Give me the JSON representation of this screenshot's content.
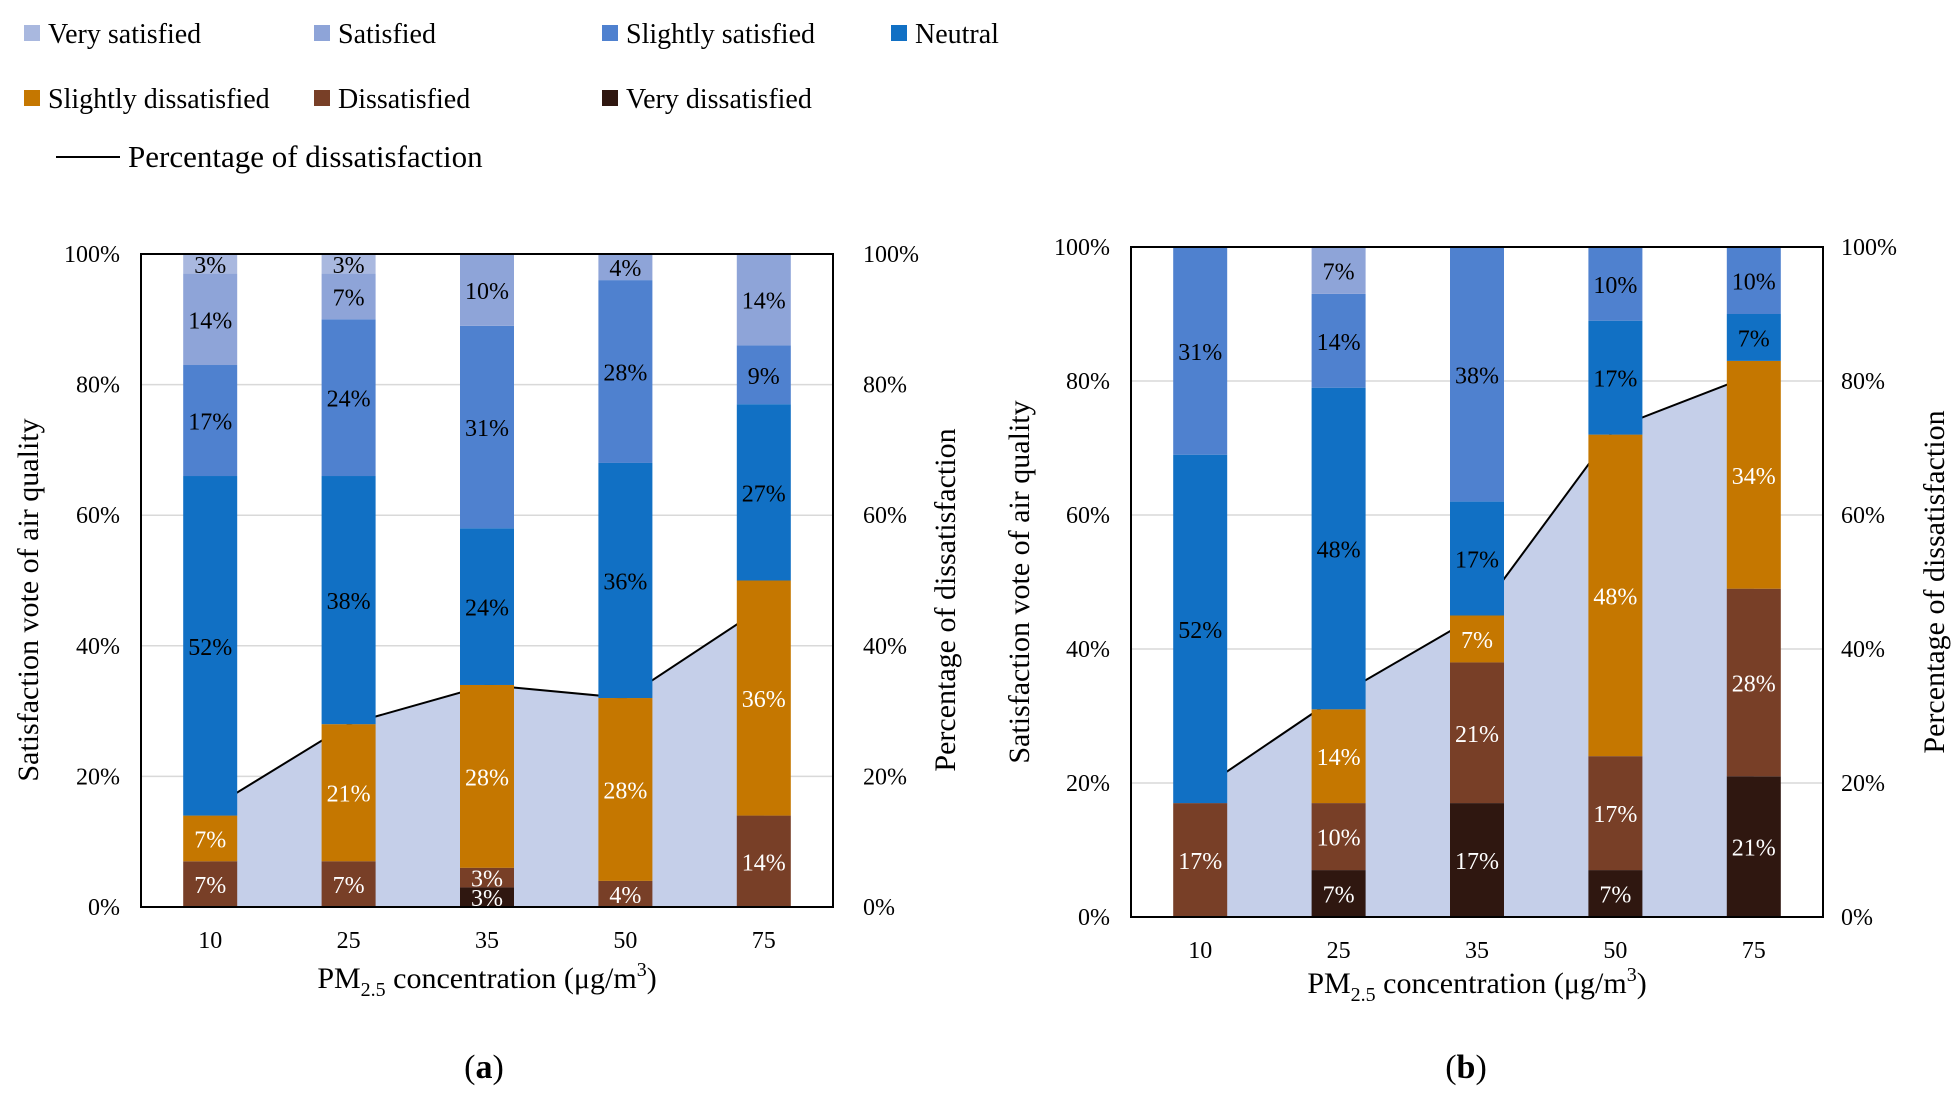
{
  "legend": {
    "categories": [
      {
        "key": "very_satisfied",
        "label": "Very satisfied",
        "color": "#A9B8DF"
      },
      {
        "key": "satisfied",
        "label": "Satisfied",
        "color": "#8EA4D8"
      },
      {
        "key": "slightly_satisfied",
        "label": "Slightly satisfied",
        "color": "#4F81CF"
      },
      {
        "key": "neutral",
        "label": "Neutral",
        "color": "#1170C4"
      },
      {
        "key": "slightly_dissatisfied",
        "label": "Slightly dissatisfied",
        "color": "#C57700"
      },
      {
        "key": "dissatisfied",
        "label": "Dissatisfied",
        "color": "#783F27"
      },
      {
        "key": "very_dissatisfied",
        "label": "Very dissatisfied",
        "color": "#2F1710"
      }
    ],
    "line_label": "Percentage of dissatisfaction",
    "line_color": "#000000",
    "area_color": "#C5CFE9"
  },
  "chart_data": [
    {
      "id": "a",
      "type": "bar",
      "stacked": true,
      "caption": "a",
      "categories": [
        "10",
        "25",
        "35",
        "50",
        "75"
      ],
      "xlabel_main": "PM",
      "xlabel_sub": "2.5",
      "xlabel_rest": " concentration  (μg/m",
      "xlabel_sup": "3",
      "xlabel_end": ")",
      "ylabel_left": "Satisfaction  vote of air quality",
      "ylabel_right": "Percentage  of dissatisfaction",
      "ylim": [
        0,
        100
      ],
      "yticks": [
        "0%",
        "20%",
        "40%",
        "60%",
        "80%",
        "100%"
      ],
      "grid": true,
      "series": [
        {
          "key": "very_dissatisfied",
          "values": [
            0,
            0,
            3,
            0,
            0
          ],
          "labels": [
            "",
            "",
            "3%",
            "",
            ""
          ]
        },
        {
          "key": "dissatisfied",
          "values": [
            7,
            7,
            3,
            4,
            14
          ],
          "labels": [
            "7%",
            "7%",
            "3%",
            "4%",
            "14%"
          ]
        },
        {
          "key": "slightly_dissatisfied",
          "values": [
            7,
            21,
            28,
            28,
            36
          ],
          "labels": [
            "7%",
            "21%",
            "28%",
            "28%",
            "36%"
          ]
        },
        {
          "key": "neutral",
          "values": [
            52,
            38,
            24,
            36,
            27
          ],
          "labels": [
            "52%",
            "38%",
            "24%",
            "36%",
            "27%"
          ]
        },
        {
          "key": "slightly_satisfied",
          "values": [
            17,
            24,
            31,
            28,
            9
          ],
          "labels": [
            "17%",
            "24%",
            "31%",
            "28%",
            "9%"
          ]
        },
        {
          "key": "satisfied",
          "values": [
            14,
            7,
            10,
            4,
            14
          ],
          "labels": [
            "14%",
            "7%",
            "10%",
            "4%",
            "14%"
          ]
        },
        {
          "key": "very_satisfied",
          "values": [
            3,
            3,
            0,
            0,
            0
          ],
          "labels": [
            "3%",
            "3%",
            "",
            "",
            ""
          ]
        }
      ],
      "dissatisfaction": [
        15,
        28,
        34,
        32,
        46
      ]
    },
    {
      "id": "b",
      "type": "bar",
      "stacked": true,
      "caption": "b",
      "categories": [
        "10",
        "25",
        "35",
        "50",
        "75"
      ],
      "xlabel_main": "PM",
      "xlabel_sub": "2.5",
      "xlabel_rest": " concentration  (μg/m",
      "xlabel_sup": "3",
      "xlabel_end": ")",
      "ylabel_left": "Satisfaction  vote of air quality",
      "ylabel_right": "Percentage  of dissatisfaction",
      "ylim": [
        0,
        100
      ],
      "yticks": [
        "0%",
        "20%",
        "40%",
        "60%",
        "80%",
        "100%"
      ],
      "grid": true,
      "series": [
        {
          "key": "very_dissatisfied",
          "values": [
            0,
            7,
            17,
            7,
            21
          ],
          "labels": [
            "",
            "7%",
            "17%",
            "7%",
            "21%"
          ]
        },
        {
          "key": "dissatisfied",
          "values": [
            17,
            10,
            21,
            17,
            28
          ],
          "labels": [
            "17%",
            "10%",
            "21%",
            "17%",
            "28%"
          ]
        },
        {
          "key": "slightly_dissatisfied",
          "values": [
            0,
            14,
            7,
            48,
            34
          ],
          "labels": [
            "",
            "14%",
            "7%",
            "48%",
            "34%"
          ]
        },
        {
          "key": "neutral",
          "values": [
            52,
            48,
            17,
            17,
            7
          ],
          "labels": [
            "52%",
            "48%",
            "17%",
            "17%",
            "7%"
          ]
        },
        {
          "key": "slightly_satisfied",
          "values": [
            31,
            14,
            38,
            10,
            10
          ],
          "labels": [
            "31%",
            "14%",
            "38%",
            "10%",
            "10%"
          ]
        },
        {
          "key": "satisfied",
          "values": [
            0,
            7,
            0,
            0,
            0
          ],
          "labels": [
            "",
            "7%",
            "",
            "",
            ""
          ]
        },
        {
          "key": "very_satisfied",
          "values": [
            0,
            0,
            0,
            0,
            0
          ],
          "labels": [
            "",
            "",
            "",
            "",
            ""
          ]
        }
      ],
      "dissatisfaction": [
        19,
        33,
        45,
        73,
        81
      ]
    }
  ]
}
